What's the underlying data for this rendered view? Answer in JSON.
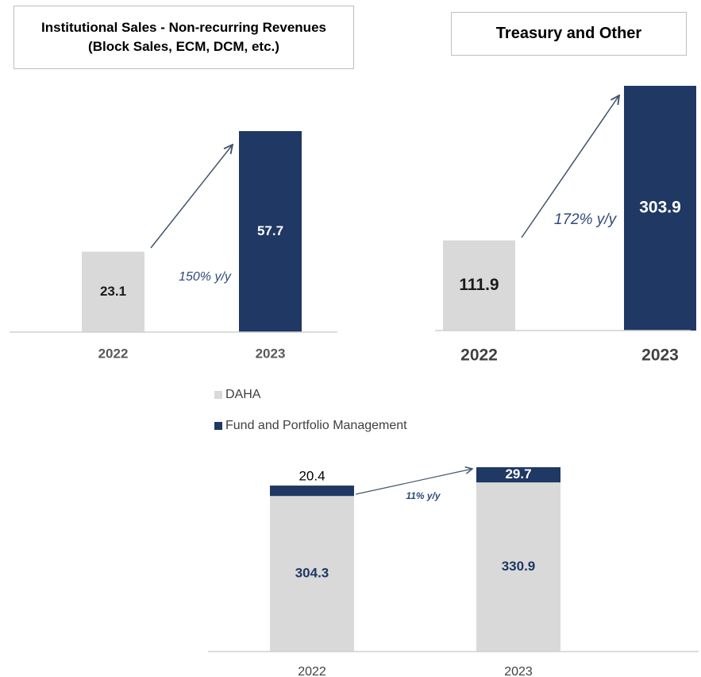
{
  "chart_data": [
    {
      "type": "bar",
      "title": "Institutional Sales - Non-recurring Revenues (Block Sales, ECM, DCM, etc.)",
      "categories": [
        "2022",
        "2023"
      ],
      "values": [
        23.1,
        57.7
      ],
      "colors": [
        "#d9d9d9",
        "#1f3864"
      ],
      "annotation": "150% y/y"
    },
    {
      "type": "bar",
      "title": "Treasury and Other",
      "categories": [
        "2022",
        "2023"
      ],
      "values": [
        111.9,
        303.9
      ],
      "colors": [
        "#d9d9d9",
        "#1f3864"
      ],
      "annotation": "172% y/y"
    },
    {
      "type": "stacked_bar",
      "categories": [
        "2022",
        "2023"
      ],
      "series": [
        {
          "name": "DAHA",
          "color": "#d9d9d9",
          "values": [
            304.3,
            330.9
          ]
        },
        {
          "name": "Fund and Portfolio Management",
          "color": "#1f3864",
          "values": [
            20.4,
            29.7
          ]
        }
      ],
      "annotation": "11% y/y"
    }
  ]
}
